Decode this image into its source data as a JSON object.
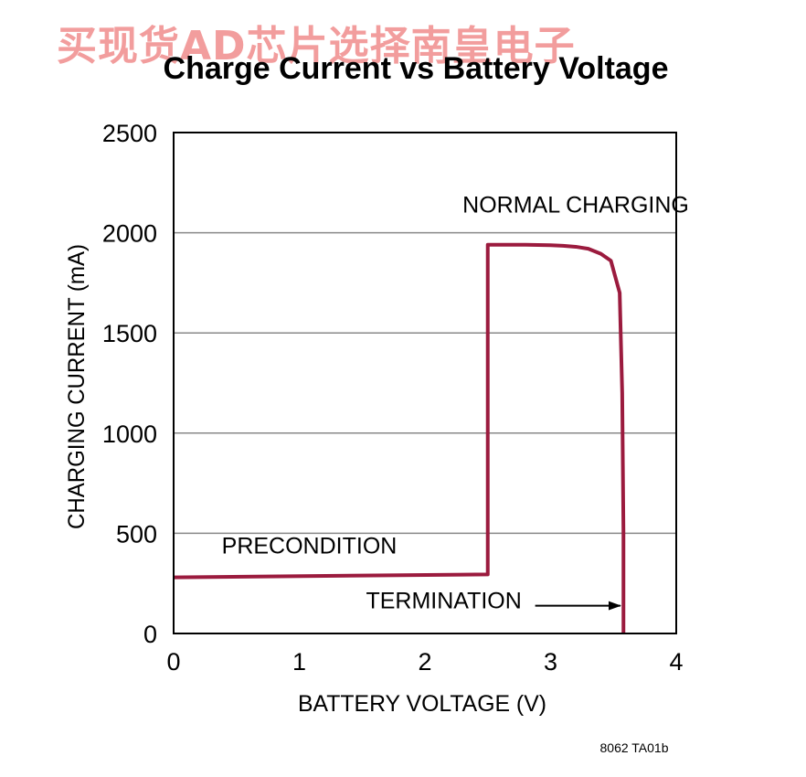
{
  "watermark": "买现货AD芯片选择南皇电子",
  "figure_code": "8062 TA01b",
  "colors": {
    "curve": "#9b1b3e",
    "grid": "#888888",
    "axes": "#000000",
    "watermark": "#f08c8c"
  },
  "chart_data": {
    "type": "line",
    "title": "Charge Current vs Battery Voltage",
    "xlabel": "BATTERY VOLTAGE (V)",
    "ylabel": "CHARGING CURRENT (mA)",
    "xlim": [
      0,
      4
    ],
    "ylim": [
      0,
      2500
    ],
    "xticks": [
      0,
      1,
      2,
      3,
      4
    ],
    "yticks": [
      0,
      500,
      1000,
      1500,
      2000,
      2500
    ],
    "grid": "horizontal",
    "legend": "none",
    "series": [
      {
        "x": [
          0,
          2.5,
          2.5,
          2.6,
          2.8,
          3.0,
          3.1,
          3.2,
          3.3,
          3.4,
          3.48,
          3.55,
          3.57,
          3.58,
          3.58
        ],
        "y": [
          280,
          295,
          1940,
          1940,
          1940,
          1938,
          1935,
          1930,
          1920,
          1895,
          1860,
          1700,
          1200,
          500,
          0
        ]
      }
    ],
    "annotations": [
      {
        "text": "NORMAL CHARGING",
        "x": 3.2,
        "y": 2100,
        "arrow": false
      },
      {
        "text": "PRECONDITION",
        "x": 1.08,
        "y": 400,
        "arrow": false
      },
      {
        "text": "TERMINATION",
        "x": 2.15,
        "y": 125,
        "arrow": true,
        "arrow_to": [
          3.57,
          125
        ]
      }
    ]
  }
}
